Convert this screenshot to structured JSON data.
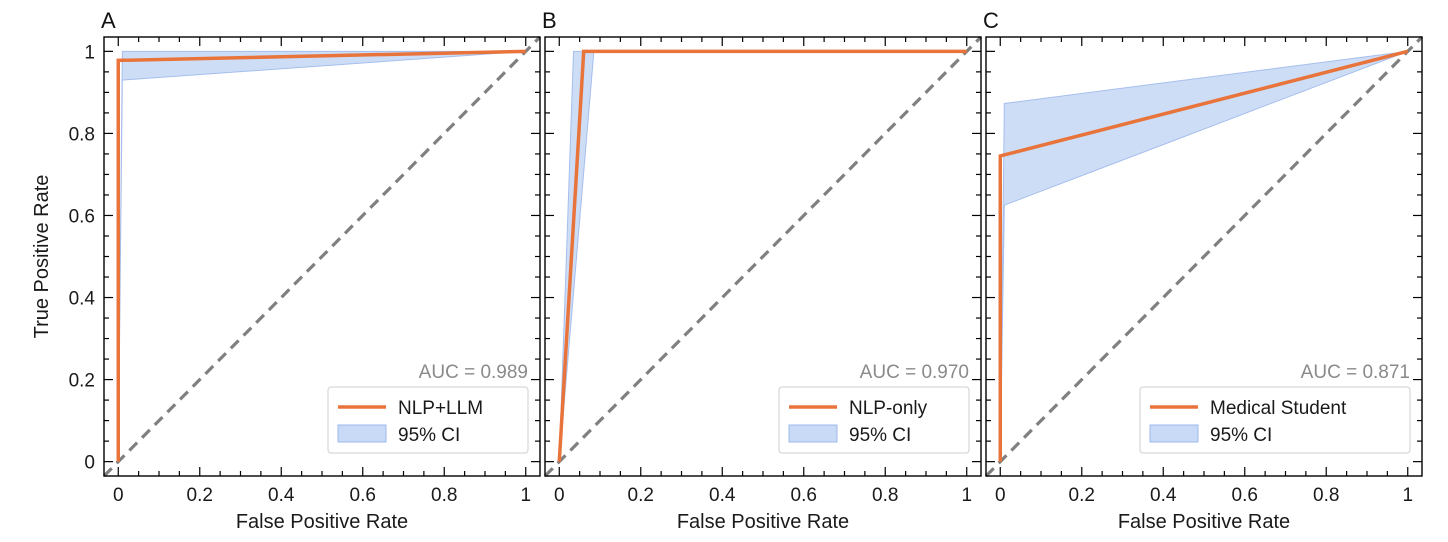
{
  "colors": {
    "roc_line": "#e8743b",
    "ci_fill": "#c9daf6",
    "ci_edge": "#9db8ec",
    "diagonal": "#808080",
    "auc_text": "#8a8a8a",
    "axis": "#000000"
  },
  "chart_data": [
    {
      "type": "line",
      "panel_label": "A",
      "xlabel": "False Positive Rate",
      "ylabel": "True Positive Rate",
      "xlim": [
        0,
        1
      ],
      "ylim": [
        0,
        1
      ],
      "xticks": [
        "0",
        "0.2",
        "0.4",
        "0.6",
        "0.8",
        "1"
      ],
      "yticks": [
        "0",
        "0.2",
        "0.4",
        "0.6",
        "0.8",
        "1"
      ],
      "auc_text": "AUC = 0.989",
      "legend": {
        "location": "lower-right",
        "line_label": "NLP+LLM",
        "ci_label": "95% CI"
      },
      "series": [
        {
          "name": "NLP+LLM",
          "x": [
            0,
            0,
            1
          ],
          "y": [
            0,
            0.978,
            1
          ]
        }
      ],
      "ci_band": {
        "x": [
          0,
          0.01,
          1
        ],
        "upper": [
          0,
          1.0,
          1
        ],
        "lower": [
          0,
          0.93,
          1
        ]
      },
      "diagonal": true
    },
    {
      "type": "line",
      "panel_label": "B",
      "xlabel": "False Positive Rate",
      "ylabel": "",
      "xlim": [
        0,
        1
      ],
      "ylim": [
        0,
        1
      ],
      "xticks": [
        "0",
        "0.2",
        "0.4",
        "0.6",
        "0.8",
        "1"
      ],
      "yticks": [],
      "auc_text": "AUC = 0.970",
      "legend": {
        "location": "lower-right",
        "line_label": "NLP-only",
        "ci_label": "95% CI"
      },
      "series": [
        {
          "name": "NLP-only",
          "x": [
            0,
            0.06,
            1
          ],
          "y": [
            0,
            1,
            1
          ]
        }
      ],
      "ci_band": {
        "upper_x": [
          0,
          0.035,
          1
        ],
        "upper_y": [
          0,
          1,
          1
        ],
        "lower_x": [
          0,
          0.085,
          1
        ],
        "lower_y": [
          0,
          1,
          1
        ]
      },
      "diagonal": true
    },
    {
      "type": "line",
      "panel_label": "C",
      "xlabel": "False Positive Rate",
      "ylabel": "",
      "xlim": [
        0,
        1
      ],
      "ylim": [
        0,
        1
      ],
      "xticks": [
        "0",
        "0.2",
        "0.4",
        "0.6",
        "0.8",
        "1"
      ],
      "yticks": [],
      "auc_text": "AUC = 0.871",
      "legend": {
        "location": "lower-right",
        "line_label": "Medical Student",
        "ci_label": "95% CI"
      },
      "series": [
        {
          "name": "Medical Student",
          "x": [
            0,
            0,
            1
          ],
          "y": [
            0,
            0.745,
            1
          ]
        }
      ],
      "ci_band": {
        "x": [
          0,
          0.01,
          1
        ],
        "upper": [
          0,
          0.873,
          1
        ],
        "lower": [
          0,
          0.625,
          1
        ]
      },
      "diagonal": true
    }
  ]
}
